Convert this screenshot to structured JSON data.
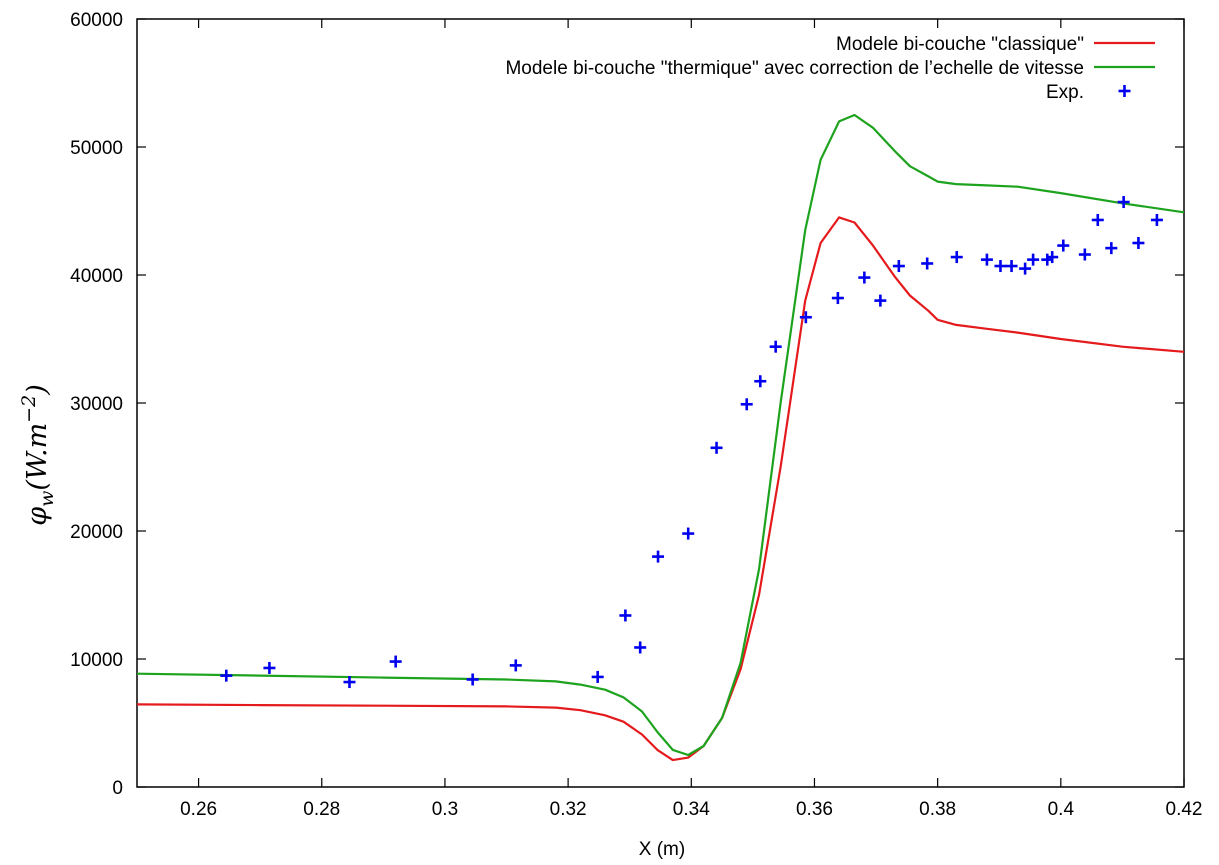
{
  "chart_data": {
    "type": "line",
    "xlabel": "X (m)",
    "ylabel_main": "φ",
    "ylabel_sub": "w",
    "ylabel_rest": "(W.m",
    "ylabel_exp": "−2",
    "ylabel_close": ")",
    "xlim": [
      0.25,
      0.42
    ],
    "ylim": [
      0,
      60000
    ],
    "xticks": [
      0.26,
      0.28,
      0.3,
      0.32,
      0.34,
      0.36,
      0.38,
      0.4,
      0.42
    ],
    "xtick_labels": [
      "0.26",
      "0.28",
      "0.3",
      "0.32",
      "0.34",
      "0.36",
      "0.38",
      "0.4",
      "0.42"
    ],
    "yticks": [
      0,
      10000,
      20000,
      30000,
      40000,
      50000,
      60000
    ],
    "ytick_labels": [
      "0",
      "10000",
      "20000",
      "30000",
      "40000",
      "50000",
      "60000"
    ],
    "grid": false,
    "legend_position": "top-right",
    "series": [
      {
        "name": "Modele bi-couche \"classique\"",
        "style": "line",
        "color": "#e41a1c",
        "x": [
          0.25,
          0.27,
          0.29,
          0.31,
          0.318,
          0.322,
          0.326,
          0.329,
          0.332,
          0.3345,
          0.337,
          0.3395,
          0.342,
          0.345,
          0.348,
          0.351,
          0.3545,
          0.3585,
          0.361,
          0.364,
          0.3665,
          0.3695,
          0.373,
          0.3755,
          0.3785,
          0.38,
          0.383,
          0.388,
          0.393,
          0.4,
          0.41,
          0.42
        ],
        "y": [
          6450,
          6400,
          6350,
          6300,
          6200,
          6000,
          5600,
          5100,
          4100,
          2900,
          2100,
          2300,
          3200,
          5400,
          9200,
          15000,
          25000,
          38000,
          42500,
          44500,
          44100,
          42300,
          39900,
          38400,
          37200,
          36500,
          36100,
          35800,
          35500,
          35000,
          34400,
          34000
        ]
      },
      {
        "name": "Modele bi-couche \"thermique\" avec correction de l’echelle de vitesse",
        "style": "line",
        "color": "#1da31d",
        "x": [
          0.25,
          0.27,
          0.29,
          0.31,
          0.318,
          0.322,
          0.326,
          0.329,
          0.332,
          0.3345,
          0.337,
          0.3395,
          0.342,
          0.345,
          0.348,
          0.351,
          0.3545,
          0.3585,
          0.361,
          0.364,
          0.3665,
          0.3695,
          0.373,
          0.3755,
          0.3785,
          0.38,
          0.383,
          0.388,
          0.393,
          0.4,
          0.41,
          0.42
        ],
        "y": [
          8850,
          8700,
          8550,
          8400,
          8250,
          8000,
          7600,
          7000,
          5900,
          4300,
          2900,
          2500,
          3200,
          5400,
          9700,
          17000,
          30000,
          43500,
          49000,
          52000,
          52500,
          51500,
          49700,
          48500,
          47700,
          47300,
          47100,
          47000,
          46900,
          46400,
          45600,
          44900
        ]
      },
      {
        "name": "Exp.",
        "style": "marker",
        "marker": "+",
        "color": "#0000ee",
        "x": [
          0.2645,
          0.2715,
          0.2845,
          0.292,
          0.3045,
          0.3115,
          0.3248,
          0.3293,
          0.3317,
          0.3346,
          0.3395,
          0.3441,
          0.349,
          0.3512,
          0.3537,
          0.3586,
          0.3638,
          0.3681,
          0.3707,
          0.3737,
          0.3783,
          0.3831,
          0.388,
          0.3902,
          0.392,
          0.3942,
          0.3955,
          0.3978,
          0.3986,
          0.4004,
          0.4039,
          0.406,
          0.4082,
          0.4102,
          0.4126,
          0.4156
        ],
        "y": [
          8700,
          9300,
          8200,
          9800,
          8400,
          9500,
          8600,
          13400,
          10900,
          18000,
          19800,
          26500,
          29900,
          31700,
          34400,
          36700,
          38200,
          39800,
          38000,
          40700,
          40900,
          41400,
          41200,
          40700,
          40700,
          40500,
          41200,
          41200,
          41400,
          42300,
          41600,
          44300,
          42100,
          45700,
          42500,
          44300
        ]
      }
    ]
  }
}
